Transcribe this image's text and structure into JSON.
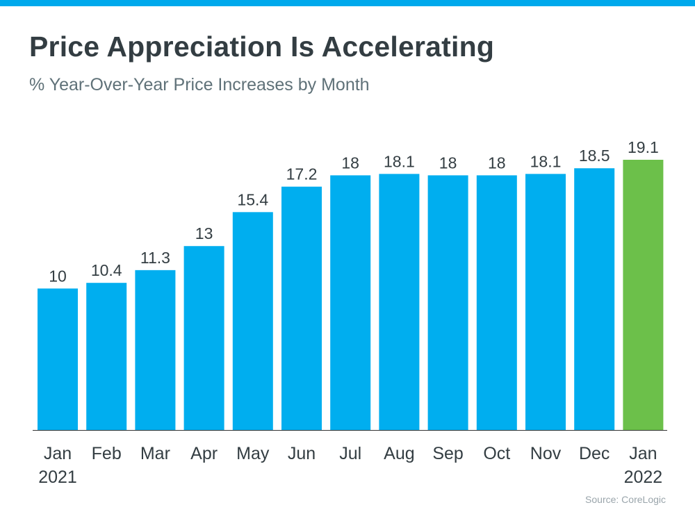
{
  "header": {
    "title": "Price Appreciation Is Accelerating",
    "subtitle": "% Year-Over-Year Price Increases by Month"
  },
  "footer": {
    "source": "Source: CoreLogic"
  },
  "colors": {
    "accent_bar": "#00a9ec",
    "bar": "#00aeef",
    "highlight_bar": "#6cc04a",
    "text_dark": "#333d42",
    "text_sub": "#5f7178",
    "axis": "#333333"
  },
  "chart_data": {
    "type": "bar",
    "title": "Price Appreciation Is Accelerating",
    "subtitle": "% Year-Over-Year Price Increases by Month",
    "categories": [
      [
        "Jan",
        "2021"
      ],
      [
        "Feb"
      ],
      [
        "Mar"
      ],
      [
        "Apr"
      ],
      [
        "May"
      ],
      [
        "Jun"
      ],
      [
        "Jul"
      ],
      [
        "Aug"
      ],
      [
        "Sep"
      ],
      [
        "Oct"
      ],
      [
        "Nov"
      ],
      [
        "Dec"
      ],
      [
        "Jan",
        "2022"
      ]
    ],
    "values": [
      10,
      10.4,
      11.3,
      13,
      15.4,
      17.2,
      18,
      18.1,
      18,
      18,
      18.1,
      18.5,
      19.1
    ],
    "value_labels": [
      "10",
      "10.4",
      "11.3",
      "13",
      "15.4",
      "17.2",
      "18",
      "18.1",
      "18",
      "18",
      "18.1",
      "18.5",
      "19.1"
    ],
    "highlight_index": 12,
    "xlabel": "",
    "ylabel": "",
    "ylim": [
      0,
      19.1
    ],
    "grid": false,
    "legend": "none",
    "data_labels": "above bars",
    "source": "Source: CoreLogic"
  }
}
